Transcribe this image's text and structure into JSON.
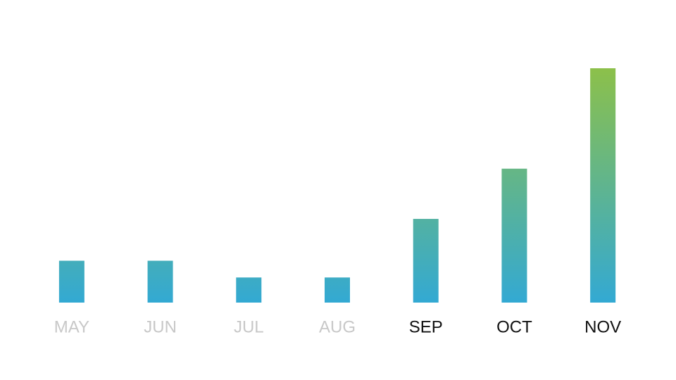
{
  "chart_data": {
    "type": "bar",
    "categories": [
      "MAY",
      "JUN",
      "JUL",
      "AUG",
      "SEP",
      "OCT",
      "NOV"
    ],
    "values": [
      5,
      5,
      3,
      3,
      10,
      16,
      28
    ],
    "gradient": [
      "#33a9d3",
      "#8cc04a"
    ],
    "label_colors": [
      "#c8c8c8",
      "#c8c8c8",
      "#c8c8c8",
      "#c8c8c8",
      "#111111",
      "#111111",
      "#111111"
    ]
  }
}
